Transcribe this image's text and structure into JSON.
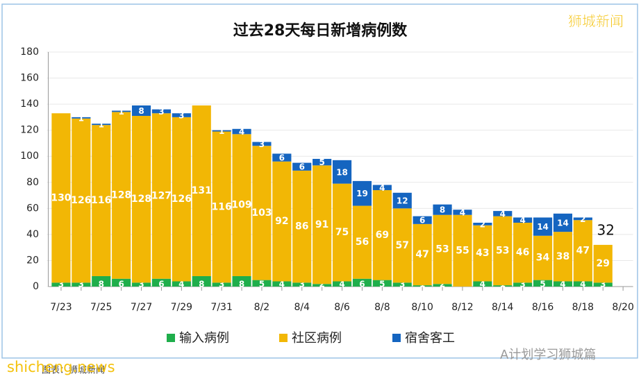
{
  "chart_data": {
    "type": "stacked_bar",
    "title": "过去28天每日新增病例数",
    "categories": [
      "7/23",
      null,
      "7/25",
      null,
      "7/27",
      null,
      "7/29",
      null,
      "7/31",
      null,
      "8/2",
      null,
      "8/4",
      null,
      "8/6",
      null,
      "8/8",
      null,
      "8/10",
      null,
      "8/12",
      null,
      "8/14",
      null,
      "8/16",
      null,
      "8/18",
      null,
      "8/20"
    ],
    "series": [
      {
        "name": "输入病例",
        "color": "#1fae4b",
        "values": [
          3,
          3,
          8,
          6,
          3,
          6,
          4,
          8,
          3,
          8,
          5,
          4,
          3,
          2,
          4,
          6,
          5,
          3,
          1,
          2,
          null,
          4,
          1,
          3,
          5,
          4,
          4,
          3,
          null
        ]
      },
      {
        "name": "社区病例",
        "color": "#f2b705",
        "values": [
          130,
          126,
          116,
          128,
          128,
          127,
          126,
          131,
          116,
          109,
          103,
          92,
          86,
          91,
          75,
          56,
          69,
          57,
          47,
          53,
          55,
          43,
          53,
          46,
          34,
          38,
          47,
          29,
          null
        ]
      },
      {
        "name": "宿舍客工",
        "color": "#1565c0",
        "values": [
          null,
          1,
          1,
          1,
          8,
          3,
          3,
          null,
          1,
          4,
          3,
          6,
          6,
          5,
          18,
          19,
          4,
          12,
          6,
          8,
          4,
          2,
          4,
          4,
          14,
          14,
          2,
          null,
          null
        ]
      }
    ],
    "totals": [
      null,
      null,
      null,
      null,
      null,
      null,
      null,
      null,
      null,
      null,
      null,
      null,
      null,
      null,
      null,
      null,
      null,
      null,
      null,
      null,
      null,
      null,
      null,
      null,
      null,
      null,
      null,
      32,
      null
    ],
    "ylim": [
      0,
      180
    ],
    "yticks": [
      0,
      20,
      40,
      60,
      80,
      100,
      120,
      140,
      160,
      180
    ],
    "grid": true,
    "legend": "bottom"
  },
  "watermarks": {
    "top_right": "狮城新闻",
    "bottom_left": "shicheng.news",
    "bottom_right": "A计划学习狮城篇",
    "source": "图表：狮城新闻"
  }
}
